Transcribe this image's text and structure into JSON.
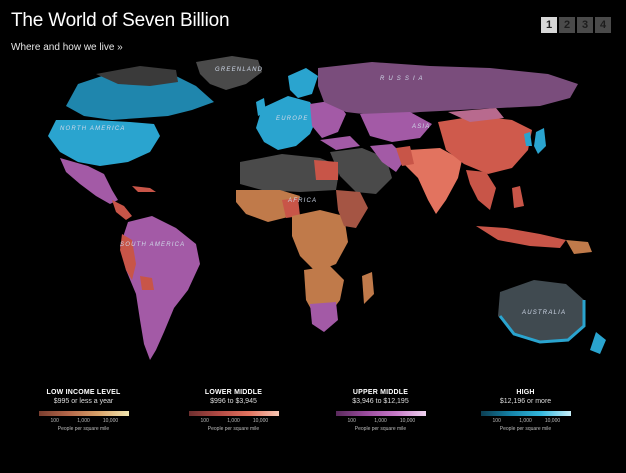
{
  "header": {
    "title": "The World of Seven Billion",
    "subtitle": "Where and how we live »"
  },
  "pager": {
    "pages": [
      "1",
      "2",
      "3",
      "4"
    ],
    "active": "1"
  },
  "map_labels": {
    "greenland": "GREENLAND",
    "russia": "R U S S I A",
    "north_america": "NORTH AMERICA",
    "europe": "EUROPE",
    "asia": "ASIA",
    "africa": "AFRICA",
    "south_america": "SOUTH AMERICA",
    "australia": "AUSTRALIA"
  },
  "legend": [
    {
      "title": "LOW INCOME LEVEL",
      "range": "$995 or less a year",
      "colors": [
        "#7a3e2f",
        "#b5684a",
        "#d9a36a",
        "#f3e7b1"
      ],
      "ticks": [
        "100",
        "1,000",
        "10,000"
      ],
      "unit": "People per square mile"
    },
    {
      "title": "LOWER MIDDLE",
      "range": "$996 to $3,945",
      "colors": [
        "#6e2f2f",
        "#b24a44",
        "#e2735f",
        "#f7c6b3"
      ],
      "ticks": [
        "100",
        "1,000",
        "10,000"
      ],
      "unit": "People per square mile"
    },
    {
      "title": "UPPER MIDDLE",
      "range": "$3,946 to $12,195",
      "colors": [
        "#5a2a5c",
        "#9a4c9d",
        "#c77ac8",
        "#efd3ef"
      ],
      "ticks": [
        "100",
        "1,000",
        "10,000"
      ],
      "unit": "People per square mile"
    },
    {
      "title": "HIGH",
      "range": "$12,196 or more",
      "colors": [
        "#0c3e52",
        "#1583a8",
        "#33b7dc",
        "#c8f0fb"
      ],
      "ticks": [
        "100",
        "1,000",
        "10,000"
      ],
      "unit": "People per square mile"
    }
  ],
  "colors": {
    "low": "#c07a4a",
    "lower_middle": "#c85548",
    "upper_middle": "#a35aa6",
    "high": "#2aa4cf",
    "no_data": "#4a4a4a"
  }
}
